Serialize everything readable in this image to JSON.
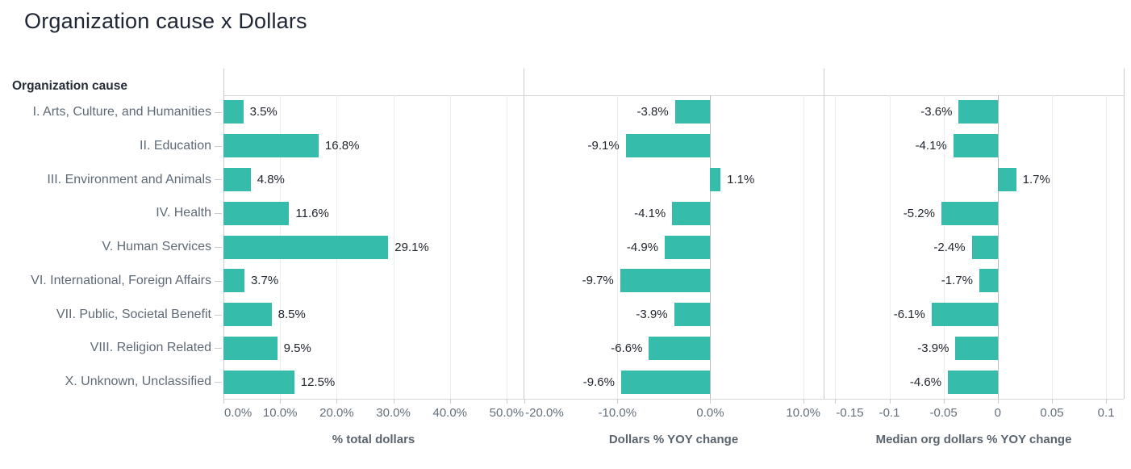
{
  "title": "Organization cause x Dollars",
  "row_header": "Organization cause",
  "colors": {
    "bar": "#36bcab",
    "gridline": "#ecedef",
    "zero_line": "#b6bbc1",
    "edge_line": "#c8ccd1",
    "frame_line": "#d3d6da",
    "category_text": "#5f6a76",
    "tick_text": "#646e79",
    "value_text": "#22272f",
    "axis_title_text": "#5a646e",
    "title_text": "#1f2533"
  },
  "chart_data": {
    "type": "bar",
    "orientation": "horizontal",
    "grid": "vertical-only",
    "legend": "none",
    "categories": [
      "I. Arts, Culture, and Humanities",
      "II. Education",
      "III. Environment and Animals",
      "IV. Health",
      "V. Human Services",
      "VI. International, Foreign Affairs",
      "VII. Public, Societal Benefit",
      "VIII. Religion Related",
      "X. Unknown, Unclassified"
    ],
    "panels": [
      {
        "axis_title": "% total dollars",
        "unit": "percent",
        "domain": [
          0,
          53.0
        ],
        "ticks": [
          {
            "v": 0,
            "label": "0.0%"
          },
          {
            "v": 10,
            "label": "10.0%"
          },
          {
            "v": 20,
            "label": "20.0%"
          },
          {
            "v": 30,
            "label": "30.0%"
          },
          {
            "v": 40,
            "label": "40.0%"
          },
          {
            "v": 50,
            "label": "50.0%"
          }
        ],
        "values": [
          3.5,
          16.8,
          4.8,
          11.6,
          29.1,
          3.7,
          8.5,
          9.5,
          12.5
        ],
        "bar_labels": [
          "3.5%",
          "16.8%",
          "4.8%",
          "11.6%",
          "29.1%",
          "3.7%",
          "8.5%",
          "9.5%",
          "12.5%"
        ]
      },
      {
        "axis_title": "Dollars % YOY change",
        "unit": "percent",
        "domain": [
          -20.1,
          12.2
        ],
        "ticks": [
          {
            "v": -20,
            "label": "-20.0%"
          },
          {
            "v": -10,
            "label": "-10.0%"
          },
          {
            "v": 0,
            "label": "0.0%"
          },
          {
            "v": 10,
            "label": "10.0%"
          }
        ],
        "values": [
          -3.8,
          -9.1,
          1.1,
          -4.1,
          -4.9,
          -9.7,
          -3.9,
          -6.6,
          -9.6
        ],
        "bar_labels": [
          "-3.8%",
          "-9.1%",
          "1.1%",
          "-4.1%",
          "-4.9%",
          "-9.7%",
          "-3.9%",
          "-6.6%",
          "-9.6%"
        ]
      },
      {
        "axis_title": "Median org dollars % YOY change",
        "unit": "fraction",
        "domain": [
          -0.1607,
          0.1163
        ],
        "ticks": [
          {
            "v": -0.15,
            "label": "-0.15"
          },
          {
            "v": -0.1,
            "label": "-0.1"
          },
          {
            "v": -0.05,
            "label": "-0.05"
          },
          {
            "v": 0,
            "label": "0"
          },
          {
            "v": 0.05,
            "label": "0.05"
          },
          {
            "v": 0.1,
            "label": "0.1"
          }
        ],
        "values": [
          -0.036,
          -0.041,
          0.017,
          -0.052,
          -0.024,
          -0.017,
          -0.061,
          -0.039,
          -0.046
        ],
        "bar_labels": [
          "-3.6%",
          "-4.1%",
          "1.7%",
          "-5.2%",
          "-2.4%",
          "-1.7%",
          "-6.1%",
          "-3.9%",
          "-4.6%"
        ]
      }
    ]
  }
}
